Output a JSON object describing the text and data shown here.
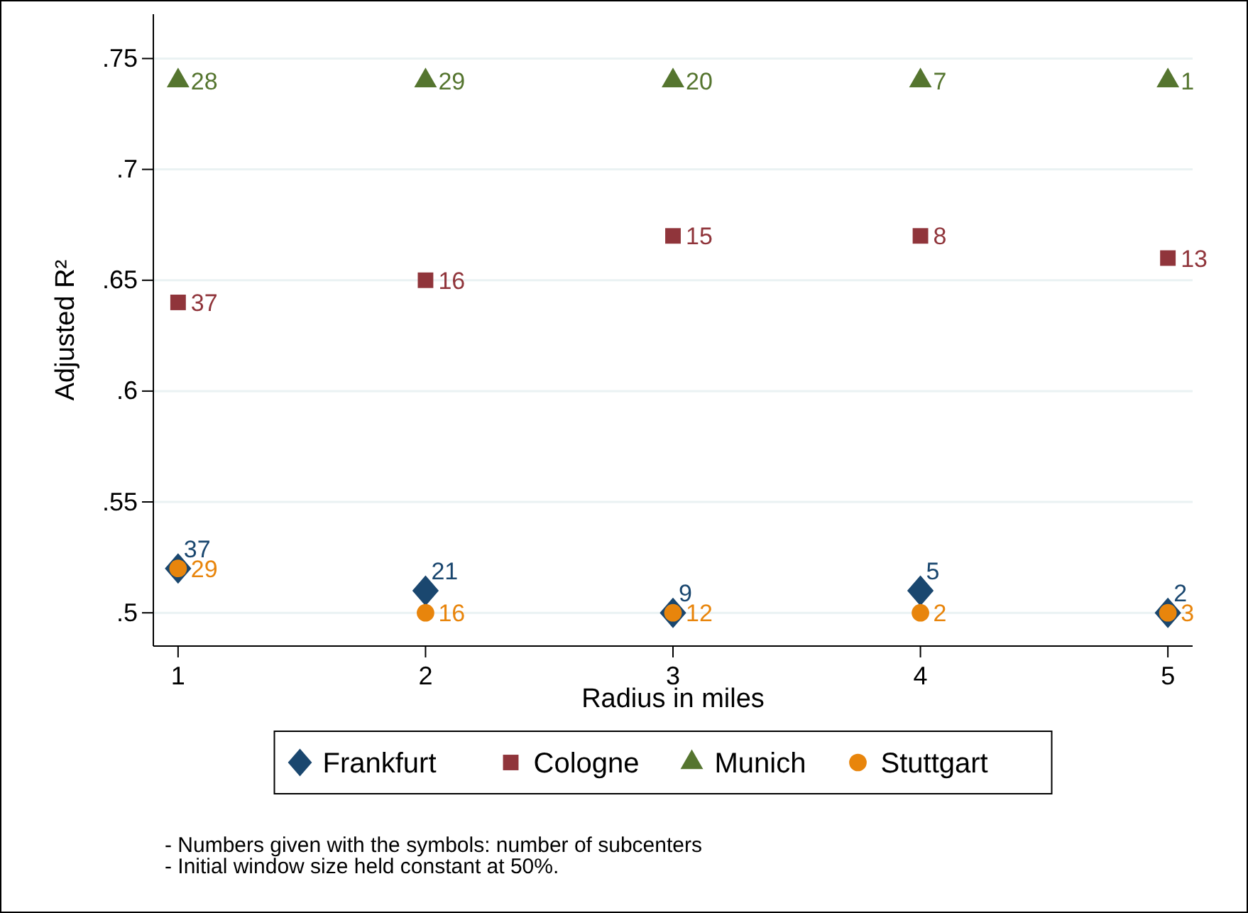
{
  "chart_data": {
    "type": "scatter",
    "xlabel": "Radius in miles",
    "ylabel": "Adjusted R²",
    "x": [
      1,
      2,
      3,
      4,
      5
    ],
    "series": [
      {
        "name": "Frankfurt",
        "color": "#1a476f",
        "marker": "diamond",
        "values": [
          0.52,
          0.51,
          0.5,
          0.51,
          0.5
        ]
      },
      {
        "name": "Cologne",
        "color": "#90353b",
        "marker": "square",
        "values": [
          0.64,
          0.65,
          0.67,
          0.67,
          0.66
        ]
      },
      {
        "name": "Munich",
        "color": "#55752f",
        "marker": "triangle",
        "values": [
          0.74,
          0.74,
          0.74,
          0.74,
          0.74
        ]
      },
      {
        "name": "Stuttgart",
        "color": "#e8850c",
        "marker": "circle",
        "values": [
          0.52,
          0.5,
          0.5,
          0.5,
          0.5
        ]
      }
    ],
    "xlim": [
      0.9,
      5.1
    ],
    "xticks": [
      1,
      2,
      3,
      4,
      5
    ],
    "ylim": [
      0.485,
      0.77
    ],
    "yticks": [
      {
        "value": 0.5,
        "label": ".5"
      },
      {
        "value": 0.55,
        "label": ".55"
      },
      {
        "value": 0.6,
        "label": ".6"
      },
      {
        "value": 0.65,
        "label": ".65"
      },
      {
        "value": 0.7,
        "label": ".7"
      },
      {
        "value": 0.75,
        "label": ".75"
      }
    ],
    "grid": "y",
    "legend": "bottom",
    "annotations": [
      {
        "text": "37",
        "x": 1,
        "y": 0.52
      },
      {
        "text": "21",
        "x": 2,
        "y": 0.51
      },
      {
        "text": "9",
        "x": 3,
        "y": 0.5
      },
      {
        "text": "5",
        "x": 4,
        "y": 0.51
      },
      {
        "text": "2",
        "x": 5,
        "y": 0.5
      },
      {
        "text": "37",
        "x": 1,
        "y": 0.64
      },
      {
        "text": "16",
        "x": 2,
        "y": 0.65
      },
      {
        "text": "15",
        "x": 3,
        "y": 0.67
      },
      {
        "text": "8",
        "x": 4,
        "y": 0.67
      },
      {
        "text": "13",
        "x": 5,
        "y": 0.66
      },
      {
        "text": "28",
        "x": 1,
        "y": 0.74
      },
      {
        "text": "29",
        "x": 2,
        "y": 0.74
      },
      {
        "text": "20",
        "x": 3,
        "y": 0.74
      },
      {
        "text": "7",
        "x": 4,
        "y": 0.74
      },
      {
        "text": "1",
        "x": 5,
        "y": 0.74
      },
      {
        "text": "29",
        "x": 1,
        "y": 0.52
      },
      {
        "text": "16",
        "x": 2,
        "y": 0.5
      },
      {
        "text": "12",
        "x": 3,
        "y": 0.5
      },
      {
        "text": "2",
        "x": 4,
        "y": 0.5
      },
      {
        "text": "3",
        "x": 5,
        "y": 0.5
      },
      "- Numbers given with the symbols: number of subcenters",
      "- Initial window size held constant at 50%."
    ]
  }
}
